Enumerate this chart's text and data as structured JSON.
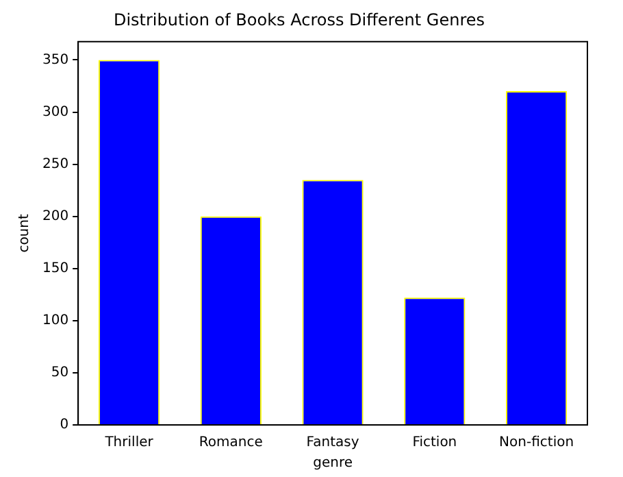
{
  "chart_data": {
    "type": "bar",
    "title": "Distribution of Books Across Different Genres",
    "xlabel": "genre",
    "ylabel": "count",
    "categories": [
      "Thriller",
      "Romance",
      "Fantasy",
      "Fiction",
      "Non-fiction"
    ],
    "values": [
      350,
      200,
      235,
      122,
      320
    ],
    "color": "#0000ff",
    "ylim": [
      0,
      367.5
    ],
    "yticks": [
      0,
      50,
      100,
      150,
      200,
      250,
      300,
      350
    ],
    "grid": false,
    "legend": false
  }
}
